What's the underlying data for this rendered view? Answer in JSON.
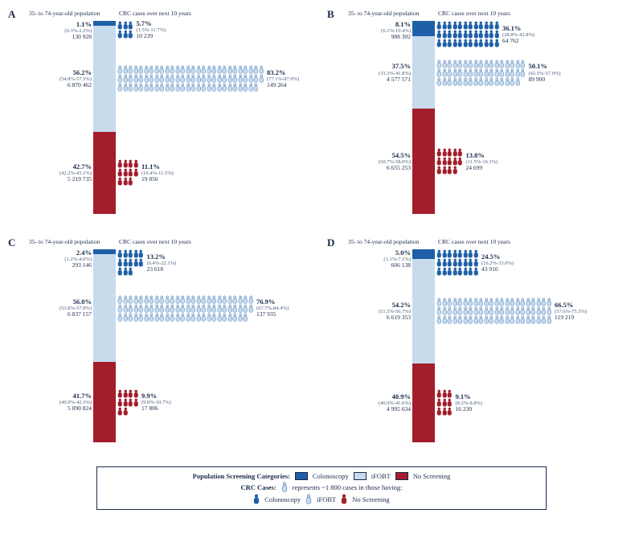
{
  "colors": {
    "colonoscopy": "#1f5fa8",
    "ifobt": "#c7dbed",
    "noscreen": "#a31d2a",
    "text": "#1a2a4a",
    "bg": "#ffffff"
  },
  "titles": {
    "pop": "35- to 74-year-old population",
    "crc": "CRC cases over next 10 years"
  },
  "icon": {
    "unit_cases": 1800,
    "width": 6.5,
    "height": 11
  },
  "legend": {
    "pop_label": "Population Screening Categories:",
    "crc_label": "CRC Cases:",
    "crc_note": "represents ~1 800 cases in those having:",
    "items": [
      "Colonoscopy",
      "iFOBT",
      "No Screening"
    ]
  },
  "panels": [
    {
      "letter": "A",
      "segments": [
        {
          "key": "colonoscopy",
          "pct": "1.1%",
          "ci": "(0.3%-2.2%)",
          "n": "130 928",
          "crc_pct": "5.7%",
          "crc_ci": "(1.5%-11.7%)",
          "crc_n": "10 239",
          "icons": 6,
          "per_row": 3
        },
        {
          "key": "ifobt",
          "pct": "56.2%",
          "ci": "(54.8%-57.5%)",
          "n": "6 870 462",
          "crc_pct": "83.2%",
          "crc_ci": "(77.1%-87.9%)",
          "crc_n": "149 264",
          "icons": 83,
          "per_row": 28
        },
        {
          "key": "noscreen",
          "pct": "42.7%",
          "ci": "(42.2%-43.1%)",
          "n": "5 219 735",
          "crc_pct": "11.1%",
          "crc_ci": "(10.4%-11.5%)",
          "crc_n": "19 856",
          "icons": 11,
          "per_row": 4
        }
      ]
    },
    {
      "letter": "B",
      "segments": [
        {
          "key": "colonoscopy",
          "pct": "8.1%",
          "ci": "(6.1%-10.4%)",
          "n": "988 302",
          "crc_pct": "36.1%",
          "crc_ci": "(28.8%-43.8%)",
          "crc_n": "64 762",
          "icons": 36,
          "per_row": 12
        },
        {
          "key": "ifobt",
          "pct": "37.5%",
          "ci": "(33.3%-41.8%)",
          "n": "4 577 571",
          "crc_pct": "50.1%",
          "crc_ci": "(42.5%-57.9%)",
          "crc_n": "89 900",
          "icons": 50,
          "per_row": 17
        },
        {
          "key": "noscreen",
          "pct": "54.5%",
          "ci": "(50.7%-58.0%)",
          "n": "6 655 253",
          "crc_pct": "13.8%",
          "crc_ci": "(11.5%-16.1%)",
          "crc_n": "24 699",
          "icons": 14,
          "per_row": 5
        }
      ]
    },
    {
      "letter": "C",
      "segments": [
        {
          "key": "colonoscopy",
          "pct": "2.4%",
          "ci": "(1.2%-4.0%)",
          "n": "293 146",
          "crc_pct": "13.2%",
          "crc_ci": "(6.4%-22.1%)",
          "crc_n": "23 618",
          "icons": 13,
          "per_row": 5
        },
        {
          "key": "ifobt",
          "pct": "56.0%",
          "ci": "(53.8%-57.9%)",
          "n": "6 837 157",
          "crc_pct": "76.9%",
          "crc_ci": "(67.7%-84.4%)",
          "crc_n": "137 935",
          "icons": 77,
          "per_row": 26
        },
        {
          "key": "noscreen",
          "pct": "41.7%",
          "ci": "(40.9%-42.3%)",
          "n": "5 090 824",
          "crc_pct": "9.9%",
          "crc_ci": "(9.0%-10.7%)",
          "crc_n": "17 806",
          "icons": 10,
          "per_row": 4
        }
      ]
    },
    {
      "letter": "D",
      "segments": [
        {
          "key": "colonoscopy",
          "pct": "5.0%",
          "ci": "(3.1%-7.1%)",
          "n": "606 138",
          "crc_pct": "24.5%",
          "crc_ci": "(16.2%-33.0%)",
          "crc_n": "43 910",
          "icons": 24,
          "per_row": 8
        },
        {
          "key": "ifobt",
          "pct": "54.2%",
          "ci": "(51.5%-56.7%)",
          "n": "6 619 353",
          "crc_pct": "66.5%",
          "crc_ci": "(57.6%-75.3%)",
          "crc_n": "119 219",
          "icons": 66,
          "per_row": 22
        },
        {
          "key": "noscreen",
          "pct": "40.9%",
          "ci": "(40.0%-41.6%)",
          "n": "4 995 634",
          "crc_pct": "9.1%",
          "crc_ci": "(8.2%-9.8%)",
          "crc_n": "16 230",
          "icons": 9,
          "per_row": 3
        }
      ]
    }
  ]
}
